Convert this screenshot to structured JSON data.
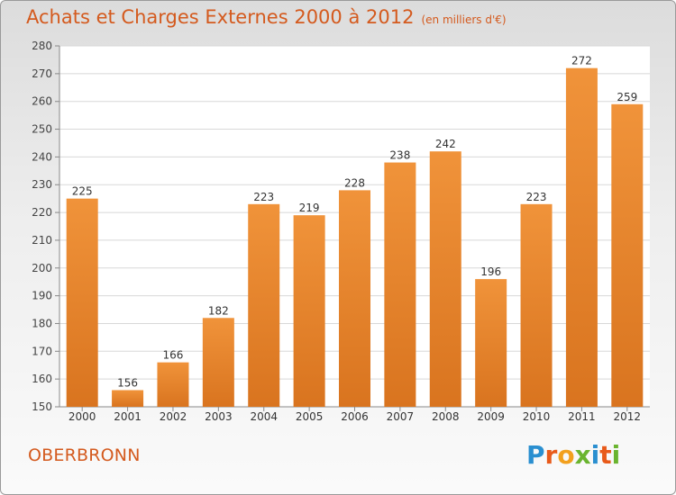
{
  "header": {
    "title": "Achats et Charges Externes 2000 à 2012",
    "subtitle": "(en milliers d'€)"
  },
  "footer": {
    "commune": "OBERBRONN",
    "brand": "Proxiti"
  },
  "colors": {
    "accent": "#d45a1e",
    "bar": "#f0933a",
    "bar_dark": "#d9741f"
  },
  "chart_data": {
    "type": "bar",
    "categories": [
      "2000",
      "2001",
      "2002",
      "2003",
      "2004",
      "2005",
      "2006",
      "2007",
      "2008",
      "2009",
      "2010",
      "2011",
      "2012"
    ],
    "values": [
      225,
      156,
      166,
      182,
      223,
      219,
      228,
      238,
      242,
      196,
      223,
      272,
      259
    ],
    "ylim": [
      150,
      280
    ],
    "yticks": [
      150,
      160,
      170,
      180,
      190,
      200,
      210,
      220,
      230,
      240,
      250,
      260,
      270,
      280
    ],
    "grid": true,
    "data_labels": true
  }
}
